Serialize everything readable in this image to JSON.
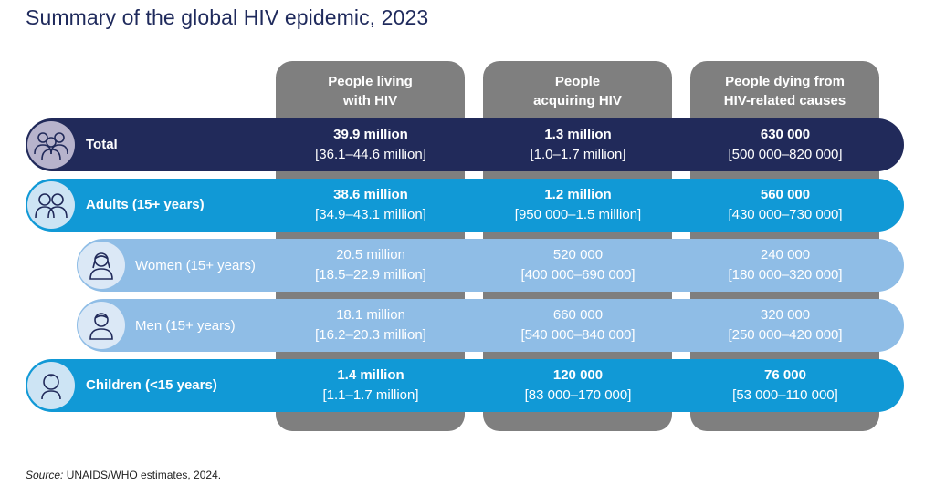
{
  "title": "Summary of the global HIV epidemic, 2023",
  "columns": [
    {
      "label": "People living\nwith HIV"
    },
    {
      "label": "People\nacquiring HIV"
    },
    {
      "label": "People dying from\nHIV-related causes"
    }
  ],
  "rows": [
    {
      "label": "Total",
      "icon": "group-icon",
      "cells": [
        {
          "value": "39.9 million",
          "range": "[36.1–44.6 million]"
        },
        {
          "value": "1.3 million",
          "range": "[1.0–1.7 million]"
        },
        {
          "value": "630 000",
          "range": "[500 000–820 000]"
        }
      ]
    },
    {
      "label": "Adults (15+ years)",
      "icon": "adults-icon",
      "cells": [
        {
          "value": "38.6 million",
          "range": "[34.9–43.1 million]"
        },
        {
          "value": "1.2 million",
          "range": "[950 000–1.5 million]"
        },
        {
          "value": "560 000",
          "range": "[430 000–730 000]"
        }
      ]
    },
    {
      "label": "Women (15+ years)",
      "icon": "woman-icon",
      "cells": [
        {
          "value": "20.5 million",
          "range": "[18.5–22.9 million]"
        },
        {
          "value": "520 000",
          "range": "[400 000–690 000]"
        },
        {
          "value": "240 000",
          "range": "[180 000–320 000]"
        }
      ]
    },
    {
      "label": "Men (15+ years)",
      "icon": "man-icon",
      "cells": [
        {
          "value": "18.1 million",
          "range": "[16.2–20.3 million]"
        },
        {
          "value": "660 000",
          "range": "[540 000–840 000]"
        },
        {
          "value": "320 000",
          "range": "[250 000–420 000]"
        }
      ]
    },
    {
      "label": "Children (<15 years)",
      "icon": "child-icon",
      "cells": [
        {
          "value": "1.4 million",
          "range": "[1.1–1.7 million]"
        },
        {
          "value": "120 000",
          "range": "[83 000–170 000]"
        },
        {
          "value": "76 000",
          "range": "[53 000–110 000]"
        }
      ]
    }
  ],
  "source": {
    "prefix": "Source:",
    "text": " UNAIDS/WHO estimates, 2024."
  },
  "colors": {
    "navy": "#212a5a",
    "blue": "#1199d6",
    "light_blue": "#8fbde6",
    "column_gray": "#7f7f7f",
    "icon_total_bg": "#b7b3cc",
    "icon_adult_bg": "#cde4f4",
    "icon_sub_bg": "#dbe8f6"
  }
}
